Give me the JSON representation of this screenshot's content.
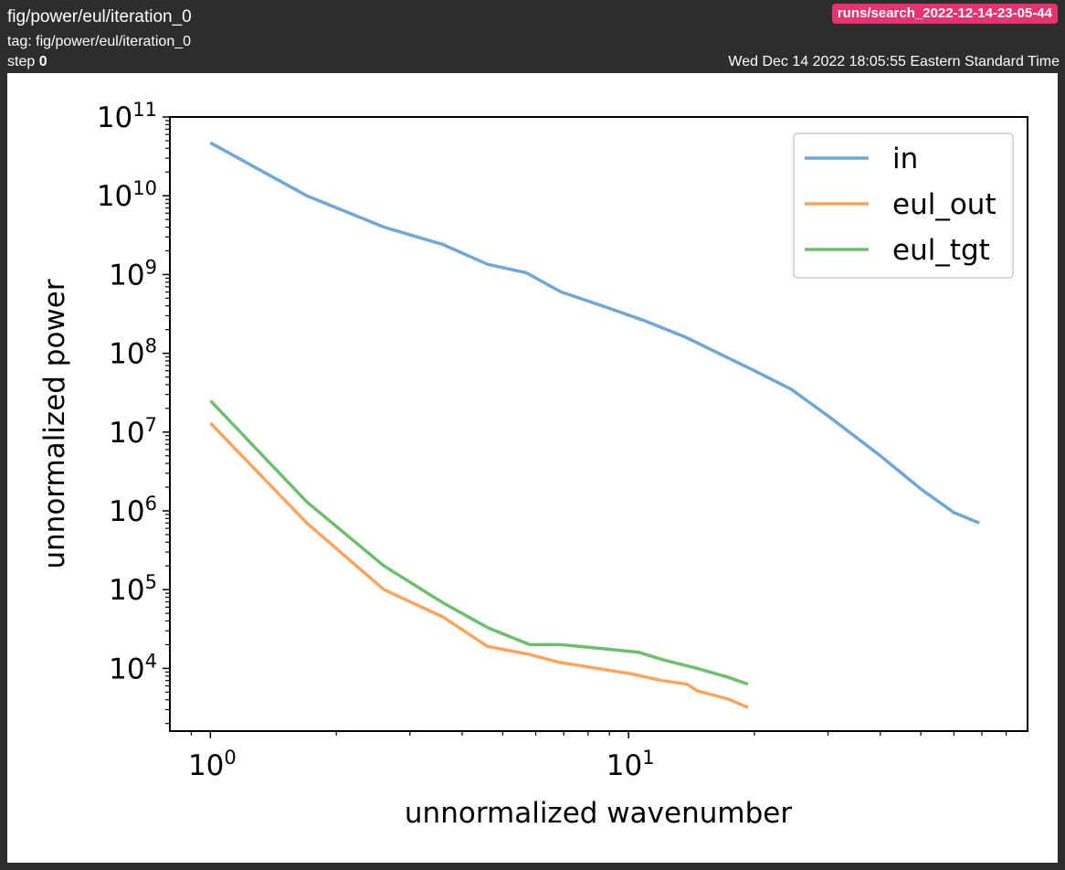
{
  "header": {
    "title": "fig/power/eul/iteration_0",
    "tag_prefix": "tag:",
    "tag": "fig/power/eul/iteration_0",
    "step_prefix": "step",
    "step": "0",
    "run": "runs/search_2022-12-14-23-05-44",
    "timestamp": "Wed Dec 14 2022 18:05:55 Eastern Standard Time"
  },
  "colors": {
    "in": "#6fa8d6",
    "eul_out": "#ffa35c",
    "eul_tgt": "#6dbf6d",
    "badge": "#e8336e"
  },
  "chart_data": {
    "type": "line",
    "xlabel": "unnormalized wavenumber",
    "ylabel": "unnormalized power",
    "xscale": "log",
    "yscale": "log",
    "xlim": [
      0.8,
      90
    ],
    "ylim": [
      1600,
      100000000000
    ],
    "xticks": [
      {
        "base": "10",
        "exp": "0",
        "value": 1
      },
      {
        "base": "10",
        "exp": "1",
        "value": 10
      }
    ],
    "yticks": [
      {
        "base": "10",
        "exp": "4",
        "value": 10000
      },
      {
        "base": "10",
        "exp": "5",
        "value": 100000
      },
      {
        "base": "10",
        "exp": "6",
        "value": 1000000
      },
      {
        "base": "10",
        "exp": "7",
        "value": 10000000
      },
      {
        "base": "10",
        "exp": "8",
        "value": 100000000
      },
      {
        "base": "10",
        "exp": "9",
        "value": 1000000000
      },
      {
        "base": "10",
        "exp": "10",
        "value": 10000000000
      },
      {
        "base": "10",
        "exp": "11",
        "value": 100000000000
      }
    ],
    "legend": {
      "position": "top-right",
      "entries": [
        "in",
        "eul_out",
        "eul_tgt"
      ]
    },
    "grid": false,
    "series": [
      {
        "name": "in",
        "color": "#6fa8d6",
        "points": [
          [
            1.0,
            47000000000.0
          ],
          [
            1.7,
            10000000000.0
          ],
          [
            2.6,
            4000000000.0
          ],
          [
            3.6,
            2400000000.0
          ],
          [
            4.6,
            1350000000.0
          ],
          [
            5.7,
            1050000000.0
          ],
          [
            6.9,
            600000000.0
          ],
          [
            8.9,
            380000000.0
          ],
          [
            10.9,
            260000000.0
          ],
          [
            13.7,
            160000000.0
          ],
          [
            20.0,
            60000000.0
          ],
          [
            24.5,
            35000000.0
          ],
          [
            30.5,
            15000000.0
          ],
          [
            40.0,
            5000000.0
          ],
          [
            50.0,
            1900000.0
          ],
          [
            60.0,
            950000.0
          ],
          [
            69.0,
            700000.0
          ]
        ]
      },
      {
        "name": "eul_out",
        "color": "#ffa35c",
        "points": [
          [
            1.0,
            13000000.0
          ],
          [
            1.7,
            700000.0
          ],
          [
            2.6,
            100000.0
          ],
          [
            3.6,
            45000.0
          ],
          [
            4.6,
            19000.0
          ],
          [
            5.8,
            15000.0
          ],
          [
            6.8,
            12000.0
          ],
          [
            10.2,
            8500.0
          ],
          [
            12.0,
            7000.0
          ],
          [
            13.8,
            6300.0
          ],
          [
            14.6,
            5200.0
          ],
          [
            17.3,
            4100.0
          ],
          [
            19.3,
            3200.0
          ]
        ]
      },
      {
        "name": "eul_tgt",
        "color": "#6dbf6d",
        "points": [
          [
            1.0,
            25000000.0
          ],
          [
            1.7,
            1300000.0
          ],
          [
            2.6,
            200000.0
          ],
          [
            3.6,
            68000.0
          ],
          [
            4.6,
            33000.0
          ],
          [
            5.8,
            20000.0
          ],
          [
            6.9,
            20000.0
          ],
          [
            10.6,
            16000.0
          ],
          [
            12.0,
            13000.0
          ],
          [
            14.6,
            10000.0
          ],
          [
            17.2,
            7800.0
          ],
          [
            19.3,
            6300.0
          ]
        ]
      }
    ]
  }
}
